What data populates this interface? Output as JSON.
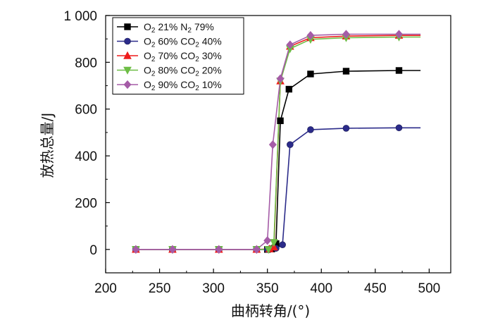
{
  "chart_data": {
    "type": "line",
    "xlabel": "曲柄转角/(°)",
    "ylabel": "放热总量/J",
    "xlim": [
      200,
      520
    ],
    "ylim": [
      -100,
      1000
    ],
    "x_ticks": [
      "200",
      "250",
      "300",
      "350",
      "400",
      "450",
      "500"
    ],
    "y_ticks": [
      "0",
      "200",
      "400",
      "600",
      "800",
      "1 000"
    ],
    "legend_position": "top-left",
    "series": [
      {
        "name": "O2 21% N2 79%",
        "legend_parts": [
          "O",
          "2",
          " 21% N",
          "2",
          " 79%"
        ],
        "color": "#000000",
        "marker": "square",
        "points": [
          [
            228,
            0
          ],
          [
            262,
            0
          ],
          [
            305,
            0
          ],
          [
            340,
            0
          ],
          [
            350,
            0
          ],
          [
            354,
            2
          ],
          [
            358,
            25
          ],
          [
            362,
            550
          ],
          [
            370,
            685
          ],
          [
            390,
            750
          ],
          [
            423,
            762
          ],
          [
            472,
            765
          ]
        ]
      },
      {
        "name": "O2 60% CO2 40%",
        "legend_parts": [
          "O",
          "2",
          " 60% CO",
          "2",
          " 40%"
        ],
        "color": "#2b2b8a",
        "marker": "circle",
        "points": [
          [
            228,
            0
          ],
          [
            262,
            0
          ],
          [
            305,
            0
          ],
          [
            340,
            0
          ],
          [
            350,
            0
          ],
          [
            358,
            5
          ],
          [
            364,
            20
          ],
          [
            371,
            448
          ],
          [
            390,
            512
          ],
          [
            423,
            518
          ],
          [
            472,
            520
          ]
        ]
      },
      {
        "name": "O2 70% CO2 30%",
        "legend_parts": [
          "O",
          "2",
          " 70% CO",
          "2",
          " 30%"
        ],
        "color": "#ee1c1c",
        "marker": "triangle-up",
        "points": [
          [
            228,
            0
          ],
          [
            262,
            0
          ],
          [
            305,
            0
          ],
          [
            340,
            0
          ],
          [
            352,
            2
          ],
          [
            356,
            10
          ],
          [
            362,
            720
          ],
          [
            371,
            868
          ],
          [
            390,
            905
          ],
          [
            423,
            912
          ],
          [
            472,
            915
          ]
        ]
      },
      {
        "name": "O2 80% CO2 20%",
        "legend_parts": [
          "O",
          "2",
          " 80% CO",
          "2",
          " 20%"
        ],
        "color": "#6dbd45",
        "marker": "triangle-down",
        "points": [
          [
            228,
            0
          ],
          [
            262,
            0
          ],
          [
            305,
            0
          ],
          [
            340,
            0
          ],
          [
            351,
            0
          ],
          [
            356,
            30
          ],
          [
            362,
            720
          ],
          [
            371,
            858
          ],
          [
            390,
            898
          ],
          [
            423,
            905
          ],
          [
            472,
            908
          ]
        ]
      },
      {
        "name": "O2 90% CO2 10%",
        "legend_parts": [
          "O",
          "2",
          " 90% CO",
          "2",
          " 10%"
        ],
        "color": "#a55ca7",
        "marker": "diamond",
        "points": [
          [
            228,
            0
          ],
          [
            262,
            0
          ],
          [
            305,
            0
          ],
          [
            340,
            0
          ],
          [
            350,
            38
          ],
          [
            355,
            448
          ],
          [
            362,
            730
          ],
          [
            371,
            875
          ],
          [
            390,
            915
          ],
          [
            423,
            920
          ],
          [
            472,
            920
          ]
        ]
      }
    ]
  }
}
